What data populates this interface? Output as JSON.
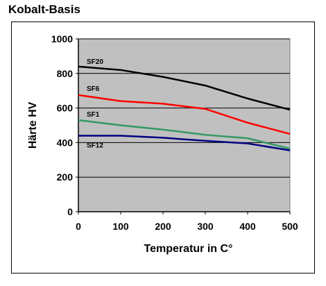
{
  "page_title": "Kobalt-Basis",
  "chart_data": {
    "type": "line",
    "title": "",
    "xlabel": "Temperatur in C°",
    "ylabel": "Härte HV",
    "xlim": [
      0,
      500
    ],
    "ylim": [
      0,
      1000
    ],
    "x_ticks": [
      0,
      100,
      200,
      300,
      400,
      500
    ],
    "y_ticks": [
      0,
      200,
      400,
      600,
      800,
      1000
    ],
    "grid": "horizontal",
    "plot_background": "#c0c0c0",
    "series": [
      {
        "name": "SF20",
        "color": "#000000",
        "x": [
          0,
          100,
          200,
          300,
          400,
          500
        ],
        "y": [
          840,
          820,
          780,
          730,
          655,
          590
        ]
      },
      {
        "name": "SF6",
        "color": "#ff0000",
        "x": [
          0,
          100,
          200,
          300,
          400,
          500
        ],
        "y": [
          675,
          640,
          625,
          595,
          515,
          450
        ]
      },
      {
        "name": "SF1",
        "color": "#339966",
        "x": [
          0,
          100,
          200,
          300,
          400,
          500
        ],
        "y": [
          530,
          500,
          475,
          445,
          425,
          365
        ]
      },
      {
        "name": "SF12",
        "color": "#000080",
        "x": [
          0,
          100,
          200,
          300,
          400,
          500
        ],
        "y": [
          440,
          440,
          428,
          410,
          395,
          355
        ]
      }
    ]
  }
}
